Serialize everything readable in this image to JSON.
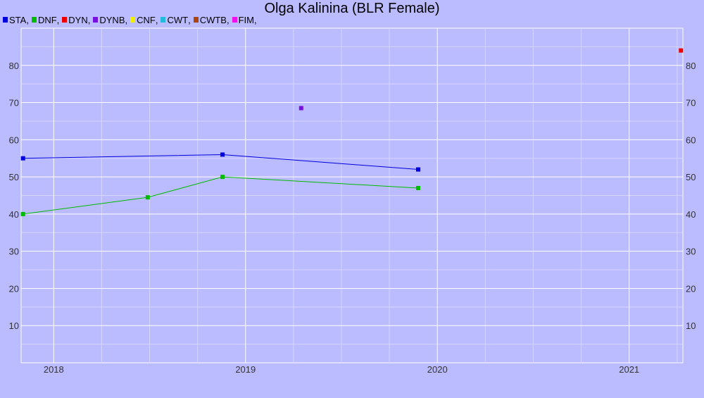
{
  "chart_data": {
    "type": "line",
    "title": "Olga Kalinina (BLR Female)",
    "xlabel": "",
    "ylabel": "",
    "xlim": [
      2017.83,
      2021.28
    ],
    "ylim": [
      0,
      90
    ],
    "x_ticks": [
      2018,
      2019,
      2020,
      2021
    ],
    "y_ticks": [
      10,
      20,
      30,
      40,
      50,
      60,
      70,
      80
    ],
    "grid": true,
    "legend_position": "top-left",
    "series": [
      {
        "name": "STA",
        "color": "#0000dd",
        "x": [
          2017.84,
          2018.88,
          2019.9
        ],
        "y": [
          55,
          56,
          52
        ]
      },
      {
        "name": "DNF",
        "color": "#00bb00",
        "x": [
          2017.84,
          2018.49,
          2018.88,
          2019.9
        ],
        "y": [
          40,
          44.5,
          50,
          47
        ]
      },
      {
        "name": "DYN",
        "color": "#ee0000",
        "x": [
          2021.27
        ],
        "y": [
          84
        ]
      },
      {
        "name": "DYNB",
        "color": "#7711dd",
        "x": [
          2019.29
        ],
        "y": [
          68.5
        ]
      },
      {
        "name": "CNF",
        "color": "#eeee00",
        "x": [],
        "y": []
      },
      {
        "name": "CWT",
        "color": "#22bbdd",
        "x": [],
        "y": []
      },
      {
        "name": "CWTB",
        "color": "#aa4411",
        "x": [],
        "y": []
      },
      {
        "name": "FIM",
        "color": "#ee11ee",
        "x": [],
        "y": []
      }
    ]
  }
}
